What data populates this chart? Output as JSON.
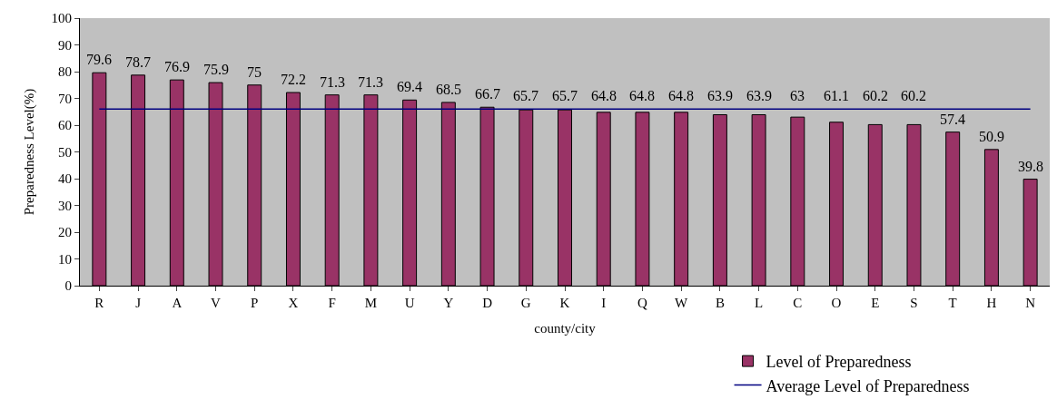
{
  "chart_data": {
    "type": "bar",
    "xlabel": "county/city",
    "ylabel": "Preparedness Level(%)",
    "categories": [
      "R",
      "J",
      "A",
      "V",
      "P",
      "X",
      "F",
      "M",
      "U",
      "Y",
      "D",
      "G",
      "K",
      "I",
      "Q",
      "W",
      "B",
      "L",
      "C",
      "O",
      "E",
      "S",
      "T",
      "H",
      "N"
    ],
    "series": [
      {
        "name": "Level of Preparedness",
        "color": "#993366",
        "values": [
          79.6,
          78.7,
          76.9,
          75.9,
          75,
          72.2,
          71.3,
          71.3,
          69.4,
          68.5,
          66.7,
          65.7,
          65.7,
          64.8,
          64.8,
          64.8,
          63.9,
          63.9,
          63,
          61.1,
          60.2,
          60.2,
          57.4,
          50.9,
          39.8
        ],
        "value_labels": [
          "79.6",
          "78.7",
          "76.9",
          "75.9",
          "75",
          "72.2",
          "71.3",
          "71.3",
          "69.4",
          "68.5",
          "66.7",
          "65.7",
          "65.7",
          "64.8",
          "64.8",
          "64.8",
          "63.9",
          "63.9",
          "63",
          "61.1",
          "60.2",
          "60.2",
          "57.4",
          "50.9",
          "39.8"
        ]
      },
      {
        "name": "Average Level of Preparedness",
        "type": "line",
        "color": "#000080",
        "values": [
          66,
          66,
          66,
          66,
          66,
          66,
          66,
          66,
          66,
          66,
          66,
          66,
          66,
          66,
          66,
          66,
          66,
          66,
          66,
          66,
          66,
          66,
          66,
          66,
          66
        ]
      }
    ],
    "ylim": [
      0,
      100
    ],
    "yticks": [
      0,
      10,
      20,
      30,
      40,
      50,
      60,
      70,
      80,
      90,
      100
    ],
    "grid": false,
    "legend": "bottom right",
    "marker": "none",
    "line_style": "solid"
  }
}
